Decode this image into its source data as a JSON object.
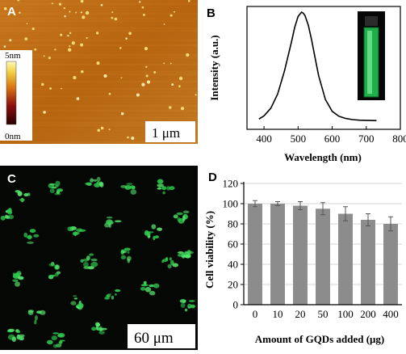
{
  "panels": {
    "a": {
      "label": "A",
      "colorbar_top": "5nm",
      "colorbar_bottom": "0nm",
      "scalebar": "1 μm"
    },
    "b": {
      "label": "B"
    },
    "c": {
      "label": "C",
      "scalebar": "60 μm"
    },
    "d": {
      "label": "D"
    }
  },
  "chart_data": [
    {
      "type": "line",
      "panel": "B",
      "xlabel": "Wavelength (nm)",
      "ylabel": "Intensity (a.u.)",
      "xlim": [
        350,
        800
      ],
      "xticks": [
        400,
        500,
        600,
        700,
        800
      ],
      "y_ticks_shown": false,
      "series": [
        {
          "x": [
            385,
            400,
            420,
            440,
            460,
            480,
            490,
            500,
            510,
            515,
            520,
            530,
            540,
            550,
            560,
            580,
            600,
            620,
            640,
            660,
            680,
            700,
            730
          ],
          "y": [
            0.02,
            0.05,
            0.12,
            0.25,
            0.46,
            0.72,
            0.86,
            0.96,
            1.0,
            0.99,
            0.97,
            0.88,
            0.74,
            0.58,
            0.42,
            0.2,
            0.09,
            0.045,
            0.025,
            0.015,
            0.01,
            0.008,
            0.006
          ]
        }
      ],
      "inset": "green-fluorescence-vial",
      "color": "#000000"
    },
    {
      "type": "bar",
      "panel": "D",
      "xlabel": "Amount of GQDs added (μg)",
      "ylabel": "Cell viability (%)",
      "categories": [
        "0",
        "10",
        "20",
        "50",
        "100",
        "200",
        "400"
      ],
      "values": [
        100,
        100,
        98,
        95,
        90,
        84,
        80
      ],
      "errors": [
        3,
        2,
        4,
        6,
        7,
        6,
        7
      ],
      "ylim": [
        0,
        120
      ],
      "yticks": [
        0,
        20,
        40,
        60,
        80,
        100,
        120
      ],
      "grid": true,
      "bar_color": "#8c8c8c"
    }
  ]
}
